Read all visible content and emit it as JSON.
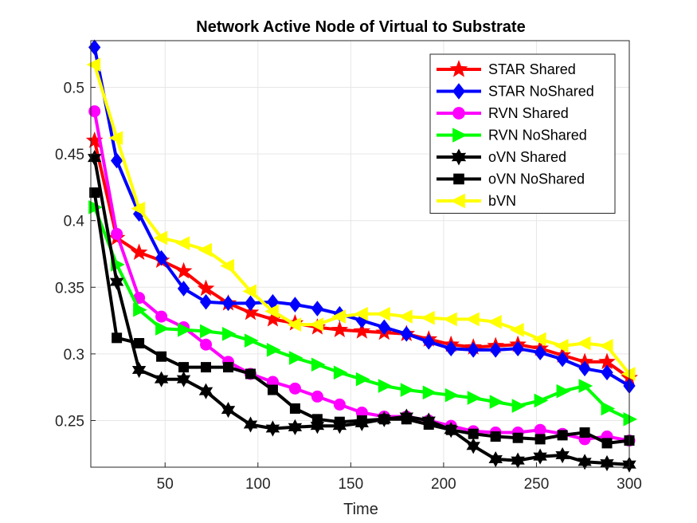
{
  "chart_data": {
    "type": "line",
    "title": "Network Active Node of Virtual to Substrate",
    "xlabel": "Time",
    "ylabel": "",
    "xlim": [
      10,
      300
    ],
    "ylim": [
      0.215,
      0.535
    ],
    "xticks": [
      50,
      100,
      150,
      200,
      250,
      300
    ],
    "yticks": [
      0.25,
      0.3,
      0.35,
      0.4,
      0.45,
      0.5
    ],
    "xtick_labels": [
      "50",
      "100",
      "150",
      "200",
      "250",
      "300"
    ],
    "ytick_labels": [
      "0.25",
      "0.3",
      "0.35",
      "0.4",
      "0.45",
      "0.5"
    ],
    "grid": true,
    "legend_position": "top-right",
    "x": [
      12,
      24,
      36,
      48,
      60,
      72,
      84,
      96,
      108,
      120,
      132,
      144,
      156,
      168,
      180,
      192,
      204,
      216,
      228,
      240,
      252,
      264,
      276,
      288,
      300
    ],
    "series": [
      {
        "name": "STAR Shared",
        "color": "#ff0000",
        "marker": "star",
        "values": [
          0.46,
          0.387,
          0.376,
          0.37,
          0.362,
          0.349,
          0.338,
          0.331,
          0.326,
          0.323,
          0.32,
          0.318,
          0.317,
          0.316,
          0.315,
          0.311,
          0.307,
          0.305,
          0.306,
          0.307,
          0.304,
          0.299,
          0.294,
          0.294,
          0.282
        ]
      },
      {
        "name": "STAR NoShared",
        "color": "#0000ff",
        "marker": "diamond",
        "values": [
          0.53,
          0.445,
          0.405,
          0.372,
          0.349,
          0.339,
          0.338,
          0.338,
          0.339,
          0.337,
          0.334,
          0.33,
          0.325,
          0.32,
          0.315,
          0.309,
          0.304,
          0.303,
          0.303,
          0.304,
          0.301,
          0.296,
          0.289,
          0.286,
          0.276
        ]
      },
      {
        "name": "RVN Shared",
        "color": "#ff00ff",
        "marker": "circle",
        "values": [
          0.482,
          0.39,
          0.342,
          0.328,
          0.32,
          0.307,
          0.294,
          0.285,
          0.279,
          0.274,
          0.268,
          0.262,
          0.256,
          0.253,
          0.253,
          0.25,
          0.246,
          0.242,
          0.241,
          0.241,
          0.243,
          0.24,
          0.236,
          0.238,
          0.235
        ]
      },
      {
        "name": "RVN NoShared",
        "color": "#00ff00",
        "marker": "triangle-right",
        "values": [
          0.41,
          0.367,
          0.333,
          0.319,
          0.318,
          0.317,
          0.315,
          0.31,
          0.303,
          0.297,
          0.292,
          0.286,
          0.281,
          0.276,
          0.273,
          0.271,
          0.269,
          0.267,
          0.264,
          0.261,
          0.265,
          0.272,
          0.276,
          0.259,
          0.251
        ]
      },
      {
        "name": "oVN Shared",
        "color": "#000000",
        "marker": "hexagram",
        "values": [
          0.447,
          0.354,
          0.288,
          0.281,
          0.281,
          0.272,
          0.258,
          0.247,
          0.244,
          0.245,
          0.246,
          0.246,
          0.248,
          0.251,
          0.253,
          0.25,
          0.243,
          0.231,
          0.221,
          0.22,
          0.223,
          0.224,
          0.219,
          0.218,
          0.217
        ]
      },
      {
        "name": "oVN NoShared",
        "color": "#000000",
        "marker": "square",
        "values": [
          0.421,
          0.312,
          0.308,
          0.298,
          0.29,
          0.29,
          0.29,
          0.285,
          0.273,
          0.259,
          0.251,
          0.249,
          0.25,
          0.251,
          0.251,
          0.247,
          0.243,
          0.24,
          0.238,
          0.237,
          0.236,
          0.239,
          0.241,
          0.233,
          0.235
        ]
      },
      {
        "name": "bVN",
        "color": "#ffff00",
        "marker": "triangle-left",
        "values": [
          0.517,
          0.462,
          0.409,
          0.387,
          0.383,
          0.378,
          0.366,
          0.347,
          0.332,
          0.322,
          0.322,
          0.328,
          0.33,
          0.33,
          0.328,
          0.327,
          0.326,
          0.326,
          0.324,
          0.318,
          0.311,
          0.306,
          0.308,
          0.306,
          0.285
        ]
      }
    ]
  }
}
